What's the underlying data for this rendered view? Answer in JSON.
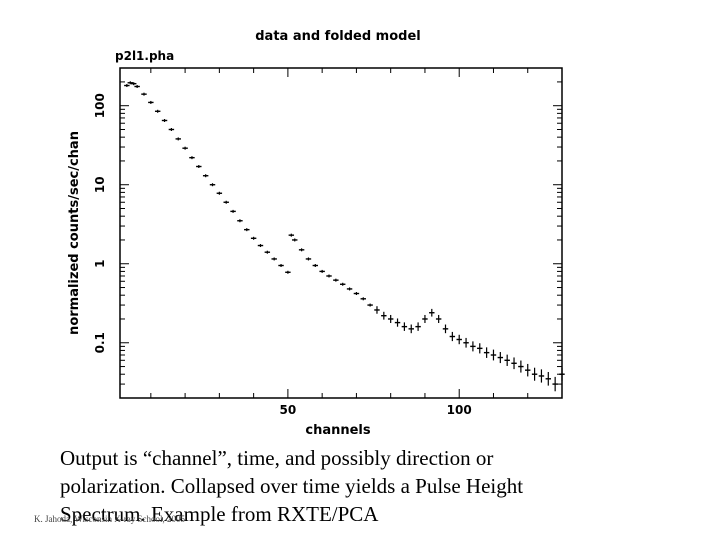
{
  "chart_data": {
    "type": "scatter",
    "title": "data and folded model",
    "subtitle": "p2l1.pha",
    "xlabel": "channels",
    "ylabel": "normalized counts/sec/chan",
    "x_scale": "linear",
    "y_scale": "log",
    "xlim": [
      1,
      130
    ],
    "ylim": [
      0.02,
      300
    ],
    "x_ticks": [
      {
        "value": 50,
        "label": "50"
      },
      {
        "value": 100,
        "label": "100"
      }
    ],
    "y_ticks": [
      {
        "value": 0.1,
        "label": "0.1"
      },
      {
        "value": 1,
        "label": "1"
      },
      {
        "value": 10,
        "label": "10"
      },
      {
        "value": 100,
        "label": "100"
      }
    ],
    "grid": false,
    "series": [
      {
        "name": "data",
        "x": [
          3,
          4,
          5,
          6,
          8,
          10,
          12,
          14,
          16,
          18,
          20,
          22,
          24,
          26,
          28,
          30,
          32,
          34,
          36,
          38,
          40,
          42,
          44,
          46,
          48,
          50,
          51,
          52,
          54,
          56,
          58,
          60,
          62,
          64,
          66,
          68,
          70,
          72,
          74,
          76,
          78,
          80,
          82,
          84,
          86,
          88,
          90,
          92,
          94,
          96,
          98,
          100,
          102,
          104,
          106,
          108,
          110,
          112,
          114,
          116,
          118,
          120,
          122,
          124,
          126,
          128,
          130
        ],
        "y": [
          180,
          195,
          190,
          175,
          140,
          110,
          85,
          65,
          50,
          38,
          29,
          22,
          17,
          13,
          10,
          7.8,
          6,
          4.6,
          3.5,
          2.7,
          2.1,
          1.7,
          1.4,
          1.15,
          0.95,
          0.78,
          2.3,
          2.0,
          1.5,
          1.15,
          0.95,
          0.8,
          0.7,
          0.62,
          0.55,
          0.48,
          0.42,
          0.36,
          0.3,
          0.26,
          0.22,
          0.2,
          0.18,
          0.16,
          0.15,
          0.16,
          0.2,
          0.24,
          0.2,
          0.15,
          0.12,
          0.11,
          0.1,
          0.09,
          0.085,
          0.075,
          0.07,
          0.065,
          0.06,
          0.055,
          0.05,
          0.045,
          0.04,
          0.038,
          0.035,
          0.03,
          0.04
        ]
      }
    ]
  },
  "caption": {
    "line1": "Output is “channel”, time, and possibly direction or",
    "line2": "polarization.  Collapsed over time yields a Pulse Height",
    "line3": "Spectrum.  Example from RXTE/PCA"
  },
  "credit": "K. Jahoda, Wisconsin X-ray School, 2005"
}
